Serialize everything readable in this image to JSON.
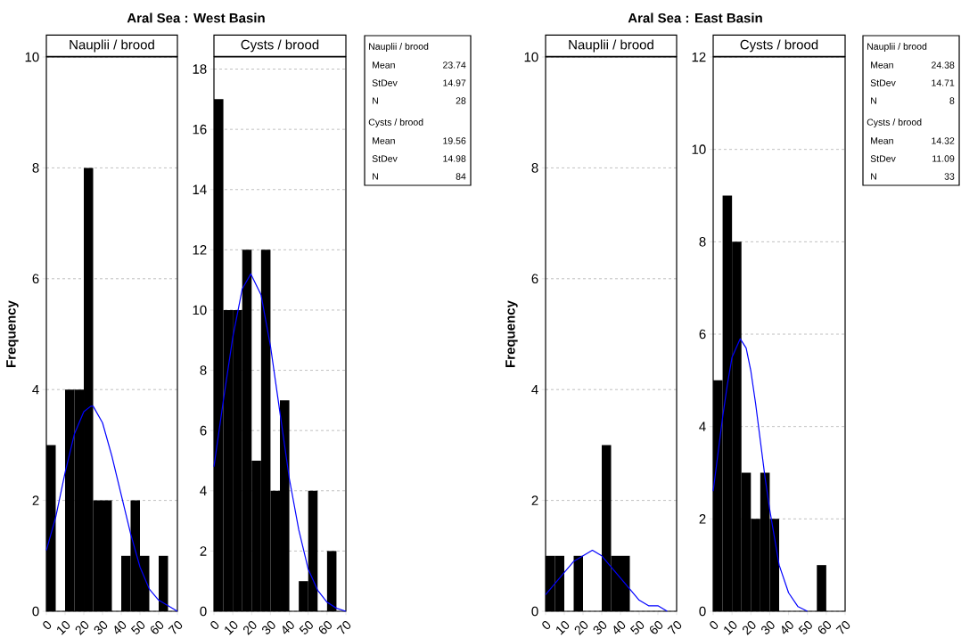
{
  "chart_data": [
    {
      "type": "histogram",
      "title": "Aral Sea : West Basin",
      "subtitle": "Nauplii / brood",
      "ylabel": "Frequency",
      "bins": [
        0,
        5,
        10,
        15,
        20,
        25,
        30,
        35,
        40,
        45,
        50,
        55,
        60,
        65,
        70
      ],
      "values": [
        3,
        0,
        4,
        4,
        8,
        2,
        2,
        0,
        1,
        2,
        1,
        0,
        1,
        0
      ],
      "color": "#000000",
      "xlim": [
        0,
        70
      ],
      "ylim": [
        0,
        10
      ],
      "xticks": [
        0,
        10,
        20,
        30,
        40,
        50,
        60,
        70
      ],
      "yticks": [
        0,
        2,
        4,
        6,
        8,
        10
      ],
      "grid": "y",
      "series": [
        {
          "type": "line",
          "color": "#0000ff",
          "x": [
            0,
            5,
            10,
            15,
            20,
            23.74,
            25,
            30,
            35,
            40,
            45,
            50,
            55,
            60,
            65,
            70
          ],
          "values": [
            1.1,
            1.7,
            2.5,
            3.2,
            3.6,
            3.7,
            3.7,
            3.4,
            2.8,
            2.1,
            1.4,
            0.8,
            0.4,
            0.2,
            0.1,
            0.0
          ]
        }
      ]
    },
    {
      "type": "histogram",
      "subtitle": "Cysts / brood",
      "bins": [
        0,
        5,
        10,
        15,
        20,
        25,
        30,
        35,
        40,
        45,
        50,
        55,
        60,
        65,
        70
      ],
      "values": [
        17,
        10,
        10,
        12,
        5,
        12,
        4,
        7,
        0,
        1,
        4,
        0,
        2,
        0
      ],
      "color": "#000000",
      "xlim": [
        0,
        70
      ],
      "ylim": [
        0,
        18.4
      ],
      "xticks": [
        0,
        10,
        20,
        30,
        40,
        50,
        60,
        70
      ],
      "yticks": [
        0,
        2,
        4,
        6,
        8,
        10,
        12,
        14,
        16,
        18
      ],
      "grid": "y",
      "series": [
        {
          "type": "line",
          "color": "#0000ff",
          "x": [
            0,
            5,
            10,
            15,
            19.56,
            25,
            30,
            35,
            40,
            45,
            50,
            55,
            60,
            65,
            70
          ],
          "values": [
            4.8,
            7.0,
            9.1,
            10.7,
            11.2,
            10.5,
            8.8,
            6.6,
            4.4,
            2.7,
            1.4,
            0.7,
            0.3,
            0.1,
            0.0
          ]
        }
      ]
    },
    {
      "type": "other",
      "annotations": [
        "Nauplii / brood",
        "Mean",
        "23.74",
        "StDev",
        "14.97",
        "N",
        "28",
        "Cysts / brood",
        "Mean",
        "19.56",
        "StDev",
        "14.98",
        "N",
        "84"
      ]
    },
    {
      "type": "histogram",
      "title": "Aral Sea : East Basin",
      "subtitle": "Nauplii / brood",
      "ylabel": "Frequency",
      "bins": [
        0,
        5,
        10,
        15,
        20,
        25,
        30,
        35,
        40,
        45,
        50,
        55,
        60,
        65,
        70
      ],
      "values": [
        1,
        1,
        0,
        1,
        0,
        0,
        3,
        1,
        1,
        0,
        0,
        0,
        0,
        0
      ],
      "color": "#000000",
      "xlim": [
        0,
        70
      ],
      "ylim": [
        0,
        10
      ],
      "xticks": [
        0,
        10,
        20,
        30,
        40,
        50,
        60,
        70
      ],
      "yticks": [
        0,
        2,
        4,
        6,
        8,
        10
      ],
      "grid": "y",
      "series": [
        {
          "type": "line",
          "color": "#0000ff",
          "x": [
            0,
            5,
            10,
            15,
            20,
            25,
            30,
            35,
            40,
            45,
            50,
            55,
            60,
            65
          ],
          "values": [
            0.3,
            0.5,
            0.7,
            0.9,
            1.0,
            1.1,
            1.0,
            0.8,
            0.6,
            0.4,
            0.2,
            0.1,
            0.1,
            0.0
          ]
        }
      ]
    },
    {
      "type": "histogram",
      "subtitle": "Cysts / brood",
      "bins": [
        0,
        5,
        10,
        15,
        20,
        25,
        30,
        35,
        40,
        45,
        50,
        55,
        60,
        65,
        70
      ],
      "values": [
        5,
        9,
        8,
        3,
        2,
        3,
        2,
        0,
        0,
        0,
        0,
        1,
        0,
        0
      ],
      "color": "#000000",
      "xlim": [
        0,
        70
      ],
      "ylim": [
        0,
        12
      ],
      "xticks": [
        0,
        10,
        20,
        30,
        40,
        50,
        60,
        70
      ],
      "yticks": [
        0,
        2,
        4,
        6,
        8,
        10,
        12
      ],
      "grid": "y",
      "series": [
        {
          "type": "line",
          "color": "#0000ff",
          "x": [
            0,
            2.5,
            5,
            7.5,
            10,
            14.32,
            17.5,
            20,
            22.5,
            25,
            27.5,
            30,
            32.5,
            35,
            37.5,
            40,
            45,
            50
          ],
          "values": [
            2.6,
            3.4,
            4.2,
            4.9,
            5.5,
            5.9,
            5.7,
            5.2,
            4.5,
            3.7,
            2.9,
            2.2,
            1.6,
            1.0,
            0.7,
            0.4,
            0.1,
            0.0
          ]
        }
      ]
    },
    {
      "type": "other",
      "annotations": [
        "Nauplii / brood",
        "Mean",
        "24.38",
        "StDev",
        "14.71",
        "N",
        "8",
        "Cysts / brood",
        "Mean",
        "14.32",
        "StDev",
        "11.09",
        "N",
        "33"
      ]
    }
  ]
}
